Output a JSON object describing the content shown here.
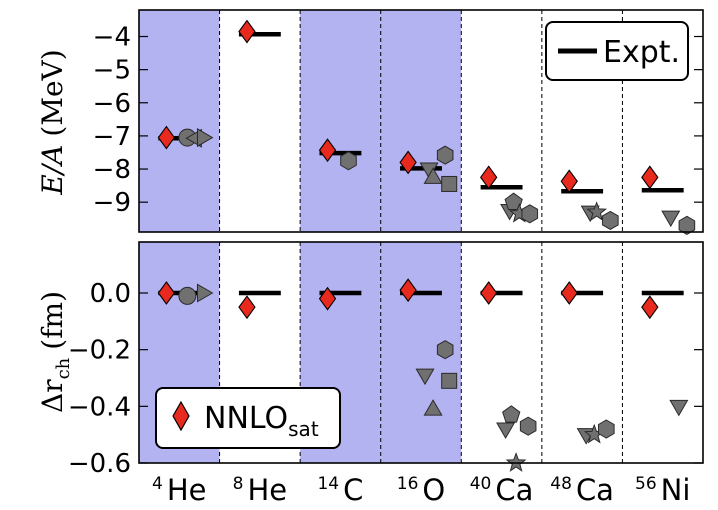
{
  "chart_data": [
    {
      "name": "energy-per-nucleon",
      "type": "scatter",
      "categories": [
        {
          "mass": "4",
          "element": "He"
        },
        {
          "mass": "8",
          "element": "He"
        },
        {
          "mass": "14",
          "element": "C"
        },
        {
          "mass": "16",
          "element": "O"
        },
        {
          "mass": "40",
          "element": "Ca"
        },
        {
          "mass": "48",
          "element": "Ca"
        },
        {
          "mass": "56",
          "element": "Ni"
        }
      ],
      "ylabel_main": "E/A",
      "ylabel_unit": "(MeV)",
      "ylim": [
        -9.9,
        -3.2
      ],
      "yticks": [
        -9,
        -8,
        -7,
        -6,
        -5,
        -4
      ],
      "ytick_labels": [
        "−9",
        "−8",
        "−7",
        "−6",
        "−5",
        "−4"
      ],
      "legend_label": "Expt.",
      "legend_position": "top-right",
      "expt": [
        -7.07,
        -3.93,
        -7.52,
        -7.98,
        -8.55,
        -8.67,
        -8.64
      ],
      "nnlosat": [
        -7.05,
        -3.85,
        -7.43,
        -7.8,
        -8.25,
        -8.37,
        -8.25
      ],
      "other_points": [
        {
          "cat": 0,
          "dx": 0.1,
          "y": -7.05,
          "marker": "circle"
        },
        {
          "cat": 0,
          "dx": 0.2,
          "y": -7.07,
          "marker": "triangle-left"
        },
        {
          "cat": 0,
          "dx": 0.3,
          "y": -7.05,
          "marker": "triangle-right"
        },
        {
          "cat": 2,
          "dx": 0.1,
          "y": -7.75,
          "marker": "hexagon"
        },
        {
          "cat": 3,
          "dx": 0.1,
          "y": -8.0,
          "marker": "triangle-down"
        },
        {
          "cat": 3,
          "dx": 0.15,
          "y": -8.25,
          "marker": "triangle-up"
        },
        {
          "cat": 3,
          "dx": 0.3,
          "y": -7.58,
          "marker": "hexagon"
        },
        {
          "cat": 3,
          "dx": 0.35,
          "y": -8.45,
          "marker": "square"
        },
        {
          "cat": 4,
          "dx": 0.1,
          "y": -9.25,
          "marker": "triangle-down"
        },
        {
          "cat": 4,
          "dx": 0.15,
          "y": -9.0,
          "marker": "pentagon"
        },
        {
          "cat": 4,
          "dx": 0.22,
          "y": -9.35,
          "marker": "star"
        },
        {
          "cat": 4,
          "dx": 0.35,
          "y": -9.35,
          "marker": "hexagon"
        },
        {
          "cat": 5,
          "dx": 0.1,
          "y": -9.3,
          "marker": "triangle-down"
        },
        {
          "cat": 5,
          "dx": 0.18,
          "y": -9.3,
          "marker": "star"
        },
        {
          "cat": 5,
          "dx": 0.35,
          "y": -9.55,
          "marker": "hexagon"
        },
        {
          "cat": 6,
          "dx": 0.1,
          "y": -9.45,
          "marker": "triangle-down"
        },
        {
          "cat": 6,
          "dx": 0.3,
          "y": -9.7,
          "marker": "hexagon"
        }
      ]
    },
    {
      "name": "charge-radius-difference",
      "type": "scatter",
      "ylabel_main": "Δr",
      "ylabel_sub": "ch",
      "ylabel_unit": "(fm)",
      "ylim": [
        -0.6,
        0.18
      ],
      "yticks": [
        -0.6,
        -0.4,
        -0.2,
        0.0
      ],
      "ytick_labels": [
        "−0.6",
        "−0.4",
        "−0.2",
        "0.0"
      ],
      "legend_label_main": "NNLO",
      "legend_label_sub": "sat",
      "legend_position": "lower-left",
      "expt": [
        0,
        0,
        0,
        0,
        0,
        0,
        0
      ],
      "nnlosat": [
        0.0,
        -0.05,
        -0.02,
        0.01,
        0.0,
        0.0,
        -0.05
      ],
      "other_points": [
        {
          "cat": 0,
          "dx": 0.1,
          "y": -0.01,
          "marker": "circle"
        },
        {
          "cat": 0,
          "dx": 0.3,
          "y": 0.0,
          "marker": "triangle-right"
        },
        {
          "cat": 3,
          "dx": 0.05,
          "y": -0.29,
          "marker": "triangle-down"
        },
        {
          "cat": 3,
          "dx": 0.15,
          "y": -0.41,
          "marker": "triangle-up"
        },
        {
          "cat": 3,
          "dx": 0.3,
          "y": -0.2,
          "marker": "hexagon"
        },
        {
          "cat": 3,
          "dx": 0.35,
          "y": -0.31,
          "marker": "square"
        },
        {
          "cat": 4,
          "dx": 0.05,
          "y": -0.48,
          "marker": "triangle-down"
        },
        {
          "cat": 4,
          "dx": 0.12,
          "y": -0.43,
          "marker": "pentagon"
        },
        {
          "cat": 4,
          "dx": 0.18,
          "y": -0.6,
          "marker": "star"
        },
        {
          "cat": 4,
          "dx": 0.33,
          "y": -0.47,
          "marker": "hexagon"
        },
        {
          "cat": 5,
          "dx": 0.05,
          "y": -0.5,
          "marker": "triangle-down"
        },
        {
          "cat": 5,
          "dx": 0.15,
          "y": -0.5,
          "marker": "star"
        },
        {
          "cat": 5,
          "dx": 0.3,
          "y": -0.48,
          "marker": "hexagon"
        },
        {
          "cat": 6,
          "dx": 0.2,
          "y": -0.4,
          "marker": "triangle-down"
        }
      ]
    }
  ],
  "colors": {
    "shade": "#b3b3f2",
    "nnlosat_fill": "#e8291d",
    "other_fill": "#707070",
    "expt_line": "#000000"
  }
}
